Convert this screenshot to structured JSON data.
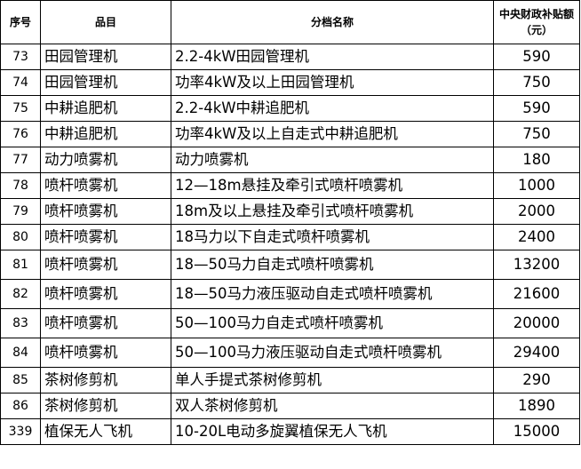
{
  "headers": {
    "no": "序号",
    "item": "品目",
    "name": "分档名称",
    "subsidy": "中央财政补贴额（元）"
  },
  "rows": [
    {
      "no": "73",
      "item": "田园管理机",
      "name": "2.2-4kW田园管理机",
      "subsidy": "590"
    },
    {
      "no": "74",
      "item": "田园管理机",
      "name": "功率4kW及以上田园管理机",
      "subsidy": "750"
    },
    {
      "no": "75",
      "item": "中耕追肥机",
      "name": "2.2-4kW中耕追肥机",
      "subsidy": "590"
    },
    {
      "no": "76",
      "item": "中耕追肥机",
      "name": "功率4kW及以上自走式中耕追肥机",
      "subsidy": "750"
    },
    {
      "no": "77",
      "item": "动力喷雾机",
      "name": "动力喷雾机",
      "subsidy": "180"
    },
    {
      "no": "78",
      "item": "喷杆喷雾机",
      "name": "12—18m悬挂及牵引式喷杆喷雾机",
      "subsidy": "1000"
    },
    {
      "no": "79",
      "item": "喷杆喷雾机",
      "name": "18m及以上悬挂及牵引式喷杆喷雾机",
      "subsidy": "2000"
    },
    {
      "no": "80",
      "item": "喷杆喷雾机",
      "name": "18马力以下自走式喷杆喷雾机",
      "subsidy": "2400"
    },
    {
      "no": "81",
      "item": "喷杆喷雾机",
      "name": "18—50马力自走式喷杆喷雾机",
      "subsidy": "13200"
    },
    {
      "no": "82",
      "item": "喷杆喷雾机",
      "name": "18—50马力液压驱动自走式喷杆喷雾机",
      "subsidy": "21600"
    },
    {
      "no": "83",
      "item": "喷杆喷雾机",
      "name": "50—100马力自走式喷杆喷雾机",
      "subsidy": "20000"
    },
    {
      "no": "84",
      "item": "喷杆喷雾机",
      "name": "50—100马力液压驱动自走式喷杆喷雾机",
      "subsidy": "29400"
    },
    {
      "no": "85",
      "item": "茶树修剪机",
      "name": "单人手提式茶树修剪机",
      "subsidy": "290"
    },
    {
      "no": "86",
      "item": "茶树修剪机",
      "name": "双人茶树修剪机",
      "subsidy": "1890"
    },
    {
      "no": "339",
      "item": "植保无人飞机",
      "name": "10-20L电动多旋翼植保无人飞机",
      "subsidy": "15000"
    }
  ]
}
